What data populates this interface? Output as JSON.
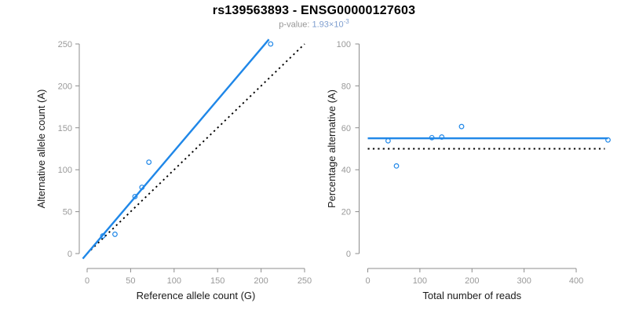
{
  "header": {
    "title": "rs139563893 - ENSG00000127603",
    "pvalue_label": "p-value: ",
    "pvalue_value": "1.93×10",
    "pvalue_exponent": "-3"
  },
  "colors": {
    "accent_blue": "#1f87e8",
    "reference_black": "#000000",
    "axis_gray": "#8c8c8c",
    "tick_text_gray": "#999999",
    "axis_title_color": "#1a1a1a",
    "subtitle_gray": "#979797",
    "pvalue_blue": "#7e9ecf",
    "point_fill": "#ffffff"
  },
  "chart_data": [
    {
      "type": "scatter",
      "name": "allele-counts-scatter",
      "xlabel": "Reference allele count (G)",
      "ylabel": "Alternative allele count (A)",
      "xlim": [
        0,
        250
      ],
      "ylim": [
        0,
        250
      ],
      "xticks": [
        0,
        50,
        100,
        150,
        200,
        250
      ],
      "yticks": [
        0,
        50,
        100,
        150,
        200,
        250
      ],
      "grid": false,
      "legend": null,
      "points": [
        [
          18,
          21
        ],
        [
          32,
          23
        ],
        [
          55,
          68
        ],
        [
          63,
          79
        ],
        [
          71,
          109
        ],
        [
          211,
          250
        ]
      ],
      "lines": [
        {
          "name": "regression-fit-line",
          "slope": 1.2222,
          "intercept": 0,
          "x_range": [
            -5,
            209
          ],
          "style": "solid",
          "color_key": "accent_blue"
        },
        {
          "name": "identity-line",
          "slope": 1,
          "intercept": 0,
          "x_range": [
            0,
            250
          ],
          "style": "dotted",
          "color_key": "reference_black"
        }
      ]
    },
    {
      "type": "scatter",
      "name": "percentage-vs-coverage-scatter",
      "xlabel": "Total number of reads",
      "ylabel": "Percentage alternative (A)",
      "xlim": [
        0,
        461
      ],
      "ylim": [
        0,
        100
      ],
      "xticks": [
        0,
        100,
        200,
        300,
        400
      ],
      "yticks": [
        0,
        20,
        40,
        60,
        80,
        100
      ],
      "grid": false,
      "legend": null,
      "points": [
        [
          39,
          53.8
        ],
        [
          55,
          41.8
        ],
        [
          123,
          55.3
        ],
        [
          142,
          55.6
        ],
        [
          180,
          60.6
        ],
        [
          461,
          54.2
        ]
      ],
      "lines": [
        {
          "name": "mean-percentage-line",
          "slope": 0,
          "intercept": 55,
          "x_range": [
            0,
            461
          ],
          "style": "solid",
          "color_key": "accent_blue"
        },
        {
          "name": "fifty-percent-line",
          "slope": 0,
          "intercept": 50,
          "x_range": [
            0,
            455
          ],
          "style": "dotted",
          "color_key": "reference_black"
        }
      ]
    }
  ]
}
